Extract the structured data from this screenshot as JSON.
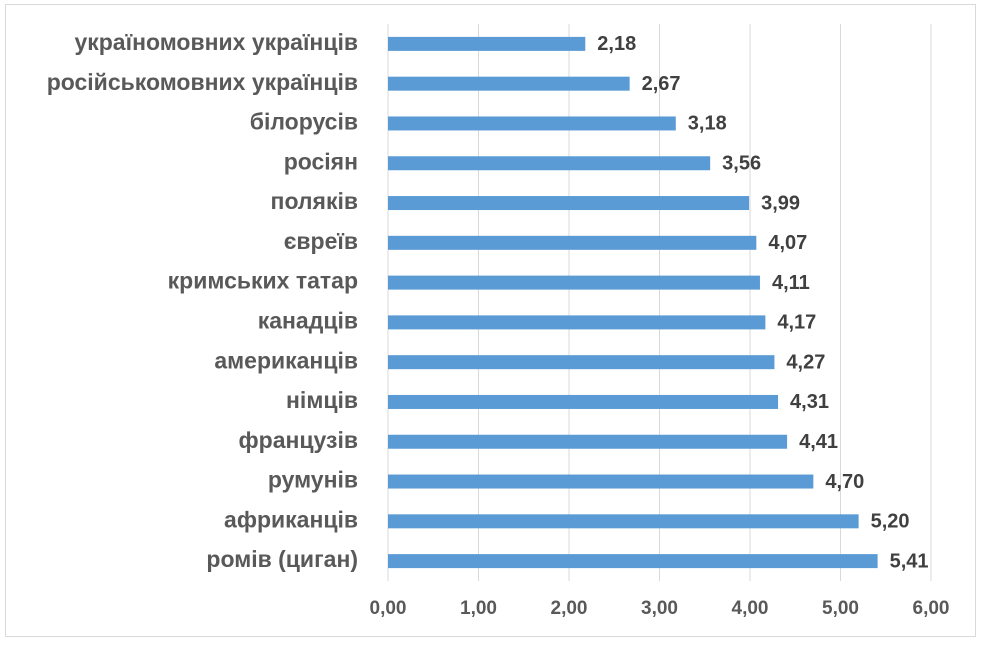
{
  "chart_data": {
    "type": "bar",
    "orientation": "horizontal",
    "categories": [
      "україномовних українців",
      "російськомовних українців",
      "білорусів",
      "росіян",
      "поляків",
      "євреїв",
      "кримських татар",
      "канадців",
      "американців",
      "німців",
      "французів",
      "румунів",
      "африканців",
      "ромів (циган)"
    ],
    "values": [
      2.18,
      2.67,
      3.18,
      3.56,
      3.99,
      4.07,
      4.11,
      4.17,
      4.27,
      4.31,
      4.41,
      4.7,
      5.2,
      5.41
    ],
    "value_labels": [
      "2,18",
      "2,67",
      "3,18",
      "3,56",
      "3,99",
      "4,07",
      "4,11",
      "4,17",
      "4,27",
      "4,31",
      "4,41",
      "4,70",
      "5,20",
      "5,41"
    ],
    "color": "#5b9bd5",
    "xlim": [
      0,
      6
    ],
    "xticks": [
      {
        "value": 0,
        "label": "0,00"
      },
      {
        "value": 1,
        "label": "1,00"
      },
      {
        "value": 2,
        "label": "2,00"
      },
      {
        "value": 3,
        "label": "3,00"
      },
      {
        "value": 4,
        "label": "4,00"
      },
      {
        "value": 5,
        "label": "5,00"
      },
      {
        "value": 6,
        "label": "6,00"
      }
    ],
    "grid": true
  }
}
